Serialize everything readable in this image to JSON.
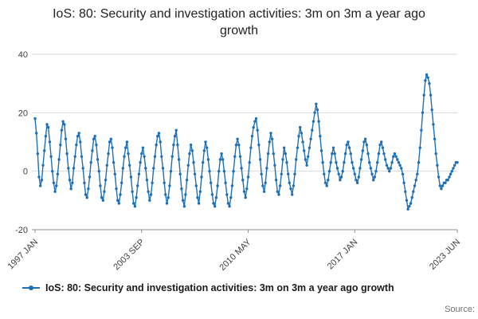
{
  "title": "IoS: 80: Security and investigation activities: 3m on 3m a year ago growth",
  "legend": {
    "label": "IoS: 80: Security and investigation activities: 3m on 3m a year ago growth"
  },
  "source_label": "Source:",
  "colors": {
    "line": "#1d70b8",
    "grid": "#d9d9d9",
    "axis": "#8f8f8f",
    "text": "#414042"
  },
  "chart_data": {
    "type": "line",
    "title": "IoS: 80: Security and investigation activities: 3m on 3m a year ago growth",
    "xlabel": "",
    "ylabel": "",
    "x_start": "1997 JAN",
    "x_end": "2023 JUN",
    "frequency": "monthly",
    "ylim": [
      -20,
      40
    ],
    "yticks": [
      40,
      20,
      0,
      -20
    ],
    "grid": "horizontal",
    "legend_position": "bottom-left",
    "markers": true,
    "xticks": [
      {
        "label": "1997 JAN",
        "index": 0
      },
      {
        "label": "2003 SEP",
        "index": 80
      },
      {
        "label": "2010 MAY",
        "index": 160
      },
      {
        "label": "2017 JAN",
        "index": 240
      },
      {
        "label": "2023 JUN",
        "index": 317
      }
    ],
    "values": [
      18,
      13,
      6,
      -2,
      -5,
      -3,
      2,
      7,
      12,
      16,
      15,
      10,
      5,
      0,
      -4,
      -7,
      -5,
      -1,
      4,
      9,
      14,
      17,
      16,
      11,
      6,
      1,
      -3,
      -6,
      -4,
      1,
      5,
      9,
      12,
      13,
      10,
      5,
      1,
      -4,
      -8,
      -9,
      -6,
      -2,
      3,
      7,
      11,
      12,
      9,
      4,
      0,
      -5,
      -9,
      -10,
      -7,
      -3,
      2,
      6,
      10,
      11,
      8,
      3,
      -1,
      -6,
      -10,
      -11,
      -8,
      -4,
      1,
      5,
      8,
      10,
      6,
      2,
      -2,
      -7,
      -11,
      -12,
      -9,
      -5,
      -1,
      3,
      6,
      8,
      5,
      1,
      -3,
      -7,
      -10,
      -8,
      -4,
      1,
      5,
      9,
      12,
      13,
      10,
      5,
      1,
      -4,
      -8,
      -11,
      -9,
      -5,
      0,
      5,
      9,
      12,
      14,
      9,
      4,
      -1,
      -6,
      -10,
      -12,
      -8,
      -3,
      2,
      6,
      9,
      7,
      3,
      -1,
      -5,
      -9,
      -11,
      -7,
      -2,
      3,
      7,
      10,
      8,
      4,
      0,
      -4,
      -8,
      -11,
      -12,
      -9,
      -5,
      0,
      4,
      6,
      4,
      0,
      -4,
      -8,
      -11,
      -12,
      -9,
      -5,
      0,
      5,
      9,
      11,
      9,
      5,
      1,
      -3,
      -7,
      -9,
      -6,
      -2,
      3,
      8,
      12,
      15,
      17,
      18,
      14,
      9,
      4,
      -1,
      -5,
      -7,
      -4,
      1,
      6,
      10,
      13,
      11,
      6,
      2,
      -3,
      -7,
      -8,
      -5,
      -1,
      4,
      8,
      6,
      3,
      -1,
      -4,
      -6,
      -8,
      -5,
      -1,
      4,
      8,
      12,
      15,
      13,
      10,
      7,
      4,
      2,
      5,
      8,
      11,
      14,
      17,
      20,
      23,
      21,
      17,
      12,
      7,
      3,
      -1,
      -4,
      -5,
      -3,
      0,
      3,
      6,
      8,
      6,
      3,
      1,
      -1,
      -3,
      -2,
      0,
      3,
      6,
      9,
      10,
      8,
      6,
      3,
      1,
      -1,
      -3,
      -4,
      -2,
      1,
      4,
      7,
      10,
      11,
      9,
      6,
      3,
      1,
      -1,
      -3,
      -2,
      0,
      3,
      6,
      9,
      10,
      8,
      6,
      4,
      2,
      1,
      0,
      1,
      3,
      5,
      6,
      5,
      4,
      3,
      2,
      1,
      -1,
      -4,
      -7,
      -10,
      -13,
      -12,
      -11,
      -9,
      -7,
      -5,
      -3,
      -1,
      3,
      8,
      14,
      20,
      26,
      31,
      33,
      32,
      30,
      26,
      21,
      16,
      11,
      6,
      2,
      -2,
      -5,
      -6,
      -5,
      -4,
      -4,
      -3,
      -3,
      -2,
      -1,
      0,
      1,
      2,
      3,
      3
    ]
  }
}
